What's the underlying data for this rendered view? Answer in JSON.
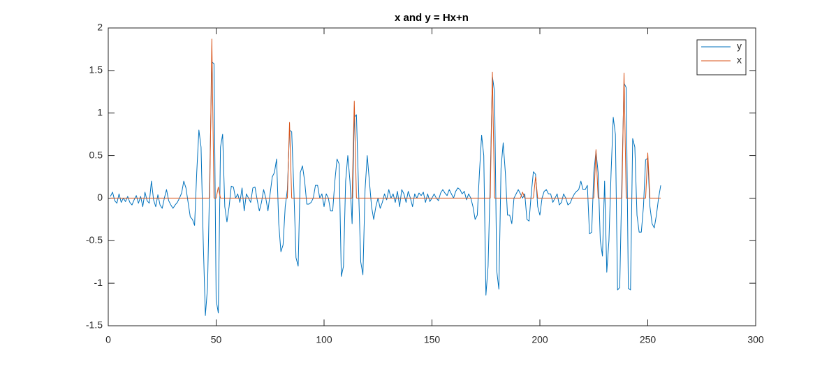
{
  "chart_data": {
    "type": "line",
    "title": "x and y = Hx+n",
    "x": [
      1,
      2,
      3,
      4,
      5,
      6,
      7,
      8,
      9,
      10,
      11,
      12,
      13,
      14,
      15,
      16,
      17,
      18,
      19,
      20,
      21,
      22,
      23,
      24,
      25,
      26,
      27,
      28,
      29,
      30,
      31,
      32,
      33,
      34,
      35,
      36,
      37,
      38,
      39,
      40,
      41,
      42,
      43,
      44,
      45,
      46,
      47,
      48,
      49,
      50,
      51,
      52,
      53,
      54,
      55,
      56,
      57,
      58,
      59,
      60,
      61,
      62,
      63,
      64,
      65,
      66,
      67,
      68,
      69,
      70,
      71,
      72,
      73,
      74,
      75,
      76,
      77,
      78,
      79,
      80,
      81,
      82,
      83,
      84,
      85,
      86,
      87,
      88,
      89,
      90,
      91,
      92,
      93,
      94,
      95,
      96,
      97,
      98,
      99,
      100,
      101,
      102,
      103,
      104,
      105,
      106,
      107,
      108,
      109,
      110,
      111,
      112,
      113,
      114,
      115,
      116,
      117,
      118,
      119,
      120,
      121,
      122,
      123,
      124,
      125,
      126,
      127,
      128,
      129,
      130,
      131,
      132,
      133,
      134,
      135,
      136,
      137,
      138,
      139,
      140,
      141,
      142,
      143,
      144,
      145,
      146,
      147,
      148,
      149,
      150,
      151,
      152,
      153,
      154,
      155,
      156,
      157,
      158,
      159,
      160,
      161,
      162,
      163,
      164,
      165,
      166,
      167,
      168,
      169,
      170,
      171,
      172,
      173,
      174,
      175,
      176,
      177,
      178,
      179,
      180,
      181,
      182,
      183,
      184,
      185,
      186,
      187,
      188,
      189,
      190,
      191,
      192,
      193,
      194,
      195,
      196,
      197,
      198,
      199,
      200,
      201,
      202,
      203,
      204,
      205,
      206,
      207,
      208,
      209,
      210,
      211,
      212,
      213,
      214,
      215,
      216,
      217,
      218,
      219,
      220,
      221,
      222,
      223,
      224,
      225,
      226,
      227,
      228,
      229,
      230,
      231,
      232,
      233,
      234,
      235,
      236,
      237,
      238,
      239,
      240,
      241,
      242,
      243,
      244,
      245,
      246,
      247,
      248,
      249,
      250,
      251,
      252,
      253,
      254,
      255,
      256
    ],
    "series": [
      {
        "name": "y",
        "color": "#0072bd",
        "values": [
          0.02,
          0.07,
          -0.03,
          -0.06,
          0.05,
          -0.05,
          0.0,
          -0.04,
          0.02,
          -0.05,
          -0.08,
          -0.02,
          0.03,
          -0.06,
          0.02,
          -0.1,
          0.07,
          -0.03,
          -0.06,
          0.2,
          -0.02,
          -0.1,
          0.04,
          -0.08,
          -0.12,
          0.0,
          0.1,
          -0.03,
          -0.08,
          -0.12,
          -0.08,
          -0.05,
          0.0,
          0.06,
          0.2,
          0.12,
          -0.05,
          -0.22,
          -0.25,
          -0.32,
          0.3,
          0.8,
          0.6,
          -0.5,
          -1.38,
          -1.05,
          0.2,
          1.6,
          1.58,
          -1.2,
          -1.35,
          0.6,
          0.75,
          -0.1,
          -0.28,
          -0.1,
          0.14,
          0.13,
          0.0,
          0.05,
          -0.05,
          0.12,
          -0.15,
          0.05,
          0.0,
          -0.05,
          0.12,
          0.13,
          -0.02,
          -0.15,
          -0.05,
          0.1,
          0.0,
          -0.15,
          0.05,
          0.25,
          0.3,
          0.46,
          -0.3,
          -0.63,
          -0.55,
          -0.1,
          0.1,
          0.8,
          0.78,
          0.1,
          -0.7,
          -0.8,
          0.3,
          0.38,
          0.2,
          -0.07,
          -0.07,
          -0.05,
          0.0,
          0.15,
          0.15,
          0.0,
          0.05,
          -0.1,
          0.05,
          0.0,
          -0.15,
          -0.15,
          0.2,
          0.46,
          0.4,
          -0.92,
          -0.8,
          0.2,
          0.5,
          0.2,
          -0.3,
          0.95,
          0.98,
          0.1,
          -0.75,
          -0.9,
          0.1,
          0.5,
          0.2,
          -0.1,
          -0.25,
          -0.1,
          0.0,
          -0.12,
          -0.05,
          0.05,
          -0.02,
          0.1,
          0.0,
          0.05,
          -0.05,
          0.08,
          -0.1,
          0.1,
          0.05,
          -0.05,
          0.08,
          0.0,
          -0.1,
          0.05,
          0.0,
          0.06,
          0.03,
          0.07,
          -0.05,
          0.05,
          -0.04,
          0.0,
          0.05,
          0.0,
          -0.03,
          0.06,
          0.1,
          0.06,
          0.03,
          0.1,
          0.05,
          0.0,
          0.08,
          0.12,
          0.1,
          0.05,
          0.08,
          -0.02,
          0.05,
          0.0,
          -0.1,
          -0.25,
          -0.2,
          0.3,
          0.74,
          0.5,
          -1.14,
          -0.8,
          0.2,
          1.43,
          1.25,
          -0.85,
          -1.07,
          0.35,
          0.65,
          0.3,
          -0.2,
          -0.2,
          -0.3,
          0.0,
          0.05,
          0.1,
          0.05,
          0.0,
          0.05,
          -0.25,
          -0.27,
          0.05,
          0.31,
          0.28,
          -0.1,
          -0.2,
          0.0,
          0.08,
          0.1,
          0.05,
          0.05,
          -0.05,
          0.0,
          0.05,
          -0.08,
          -0.05,
          0.05,
          0.0,
          -0.08,
          -0.06,
          0.0,
          0.05,
          0.08,
          0.1,
          0.2,
          0.1,
          0.1,
          0.15,
          -0.42,
          -0.4,
          0.3,
          0.55,
          0.3,
          -0.5,
          -0.68,
          0.2,
          -0.87,
          -0.5,
          0.3,
          0.95,
          0.75,
          -1.08,
          -1.05,
          0.2,
          1.35,
          1.3,
          -1.06,
          -1.08,
          0.7,
          0.6,
          -0.2,
          -0.4,
          -0.4,
          -0.1,
          0.45,
          0.47,
          -0.1,
          -0.3,
          -0.35,
          -0.2,
          0.0,
          0.15
        ]
      },
      {
        "name": "x",
        "color": "#d95319",
        "values": [
          0,
          0,
          0,
          0,
          0,
          0,
          0,
          0,
          0,
          0,
          0,
          0,
          0,
          0,
          0,
          0,
          0,
          0,
          0,
          0,
          0,
          0,
          0,
          0,
          0,
          0,
          0,
          0,
          0,
          0,
          0,
          0,
          0,
          0,
          0,
          0,
          0,
          0,
          0,
          0,
          0,
          0,
          0,
          0,
          0,
          0,
          0,
          1.87,
          0,
          0,
          0.13,
          0,
          0,
          0,
          0,
          0,
          0,
          0,
          0,
          0,
          0,
          0,
          0,
          0,
          0,
          0,
          0,
          0,
          0,
          0,
          0,
          0,
          0,
          0,
          0,
          0,
          0,
          0,
          0,
          0,
          0,
          0,
          0,
          0.89,
          0,
          0,
          0,
          0,
          0,
          0,
          0,
          0,
          0,
          0,
          0,
          0,
          0,
          0,
          0,
          0,
          0,
          0,
          0,
          0,
          0,
          0,
          0,
          0,
          0,
          0,
          0,
          0,
          0,
          1.14,
          0,
          0,
          0,
          0,
          0,
          0,
          0,
          0,
          0,
          0,
          0,
          0,
          0,
          0,
          0,
          0,
          0,
          0,
          0,
          0,
          0,
          0,
          0,
          0,
          0,
          0,
          0,
          0,
          0,
          0,
          0,
          0,
          0,
          0,
          0,
          0,
          0,
          0,
          0,
          0,
          0,
          0,
          0,
          0,
          0,
          0,
          0,
          0,
          0,
          0,
          0,
          0,
          0,
          0,
          0,
          0,
          0,
          0,
          0,
          0,
          0,
          0,
          0,
          1.48,
          0,
          0,
          0,
          0,
          0,
          0,
          0,
          0,
          0,
          0,
          0,
          0,
          0,
          0.07,
          0,
          0,
          0,
          0,
          0,
          0.25,
          0,
          0,
          0,
          0,
          0,
          0,
          0,
          0,
          0,
          0,
          0,
          0,
          0,
          0,
          0,
          0,
          0,
          0,
          0,
          0,
          0,
          0,
          0,
          0,
          0,
          0,
          0,
          0.57,
          0,
          0,
          0,
          0,
          0,
          0,
          0,
          0,
          0,
          0,
          0,
          0,
          1.47,
          0,
          0,
          0,
          0,
          0,
          0,
          0,
          0,
          0,
          0,
          0.53,
          0,
          0,
          0,
          0,
          0,
          0
        ]
      }
    ],
    "xlim": [
      0,
      300
    ],
    "xticks": [
      0,
      50,
      100,
      150,
      200,
      250,
      300
    ],
    "ylim": [
      -1.5,
      2
    ],
    "yticks": [
      -1.5,
      -1,
      -0.5,
      0,
      0.5,
      1,
      1.5,
      2
    ],
    "legend": "upper right"
  }
}
